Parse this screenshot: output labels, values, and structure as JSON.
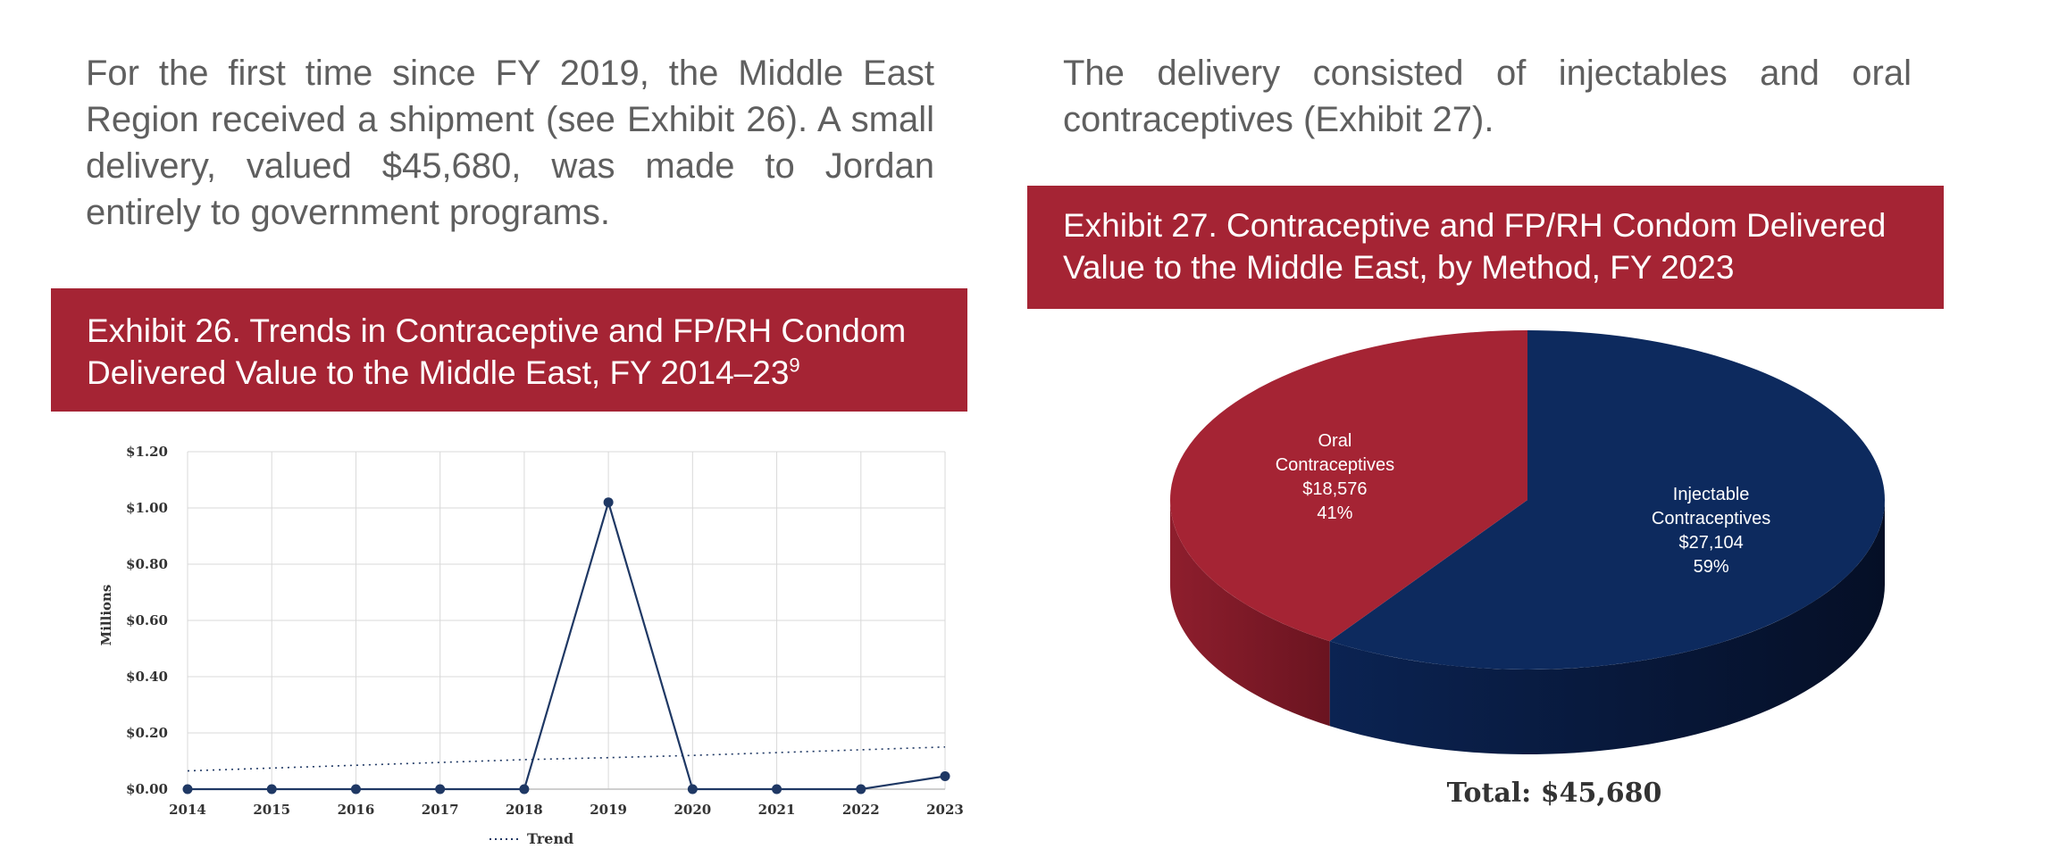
{
  "paragraphs": {
    "left": "For the first time since FY 2019, the Middle East Region received a shipment (see Exhibit 26). A small delivery, valued $45,680, was made to Jordan entirely to government programs.",
    "right": "The delivery consisted of injectables and oral contraceptives (Exhibit 27)."
  },
  "exhibit26": {
    "title": "Exhibit 26. Trends in Contraceptive and FP/RH Condom Delivered Value to the Middle East, FY 2014–23",
    "footnote": "9"
  },
  "exhibit27": {
    "title": "Exhibit 27. Contraceptive and FP/RH Condom Delivered Value to the Middle East, by Method, FY 2023"
  },
  "colors": {
    "banner": "#a52434",
    "line": "#1f3864",
    "injectable": "#0d2a5e",
    "oral": "#a52434"
  },
  "chart_data": [
    {
      "type": "line",
      "title": "",
      "xlabel": "",
      "ylabel": "Millions",
      "x": [
        "2014",
        "2015",
        "2016",
        "2017",
        "2018",
        "2019",
        "2020",
        "2021",
        "2022",
        "2023"
      ],
      "y_ticks": [
        "$0.00",
        "$0.20",
        "$0.40",
        "$0.60",
        "$0.80",
        "$1.00",
        "$1.20"
      ],
      "ylim": [
        0,
        1.2
      ],
      "grid": true,
      "legend_position": "bottom",
      "series": [
        {
          "values": [
            0,
            0,
            0,
            0,
            0,
            1.02,
            0,
            0,
            0,
            0.046
          ],
          "style": "solid-markers"
        },
        {
          "name": "Trend",
          "values": [
            0.065,
            0.075,
            0.085,
            0.095,
            0.105,
            0.112,
            0.12,
            0.13,
            0.14,
            0.15
          ],
          "style": "dotted"
        }
      ]
    },
    {
      "type": "pie",
      "title": "",
      "slices": [
        {
          "label_lines": [
            "Injectable",
            "Contraceptives",
            "$27,104",
            "59%"
          ],
          "value": 27104,
          "percent": 59,
          "color": "#0d2a5e",
          "color_side": "#081a3c"
        },
        {
          "label_lines": [
            "Oral",
            "Contraceptives",
            "$18,576",
            "41%"
          ],
          "value": 18576,
          "percent": 41,
          "color": "#a52434",
          "color_side": "#7d1a27"
        }
      ],
      "total_label": "Total: $45,680"
    }
  ]
}
